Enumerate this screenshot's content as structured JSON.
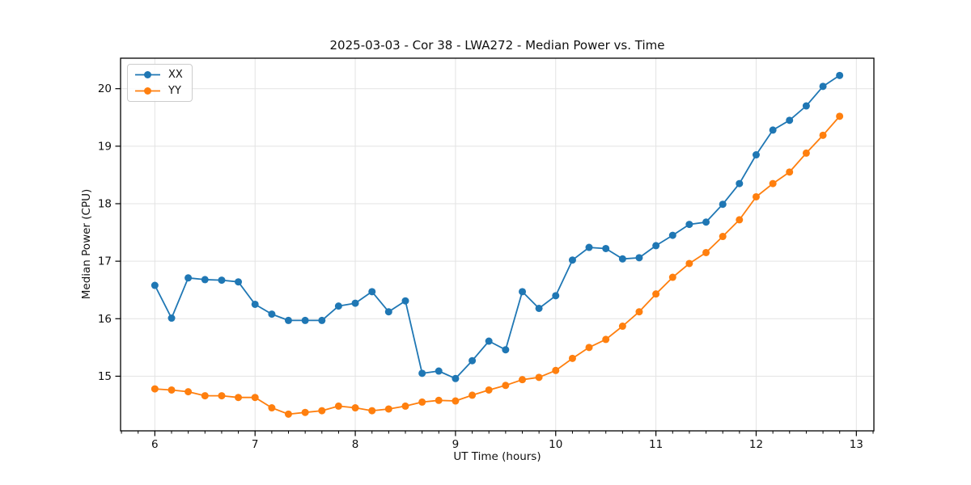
{
  "chart_data": {
    "type": "line",
    "title": "2025-03-03 - Cor 38 - LWA272 - Median Power vs. Time",
    "xlabel": "UT Time (hours)",
    "ylabel": "Median Power (CPU)",
    "xlim": [
      5.658,
      13.175
    ],
    "ylim": [
      14.05,
      20.53
    ],
    "x_ticks": [
      6,
      7,
      8,
      9,
      10,
      11,
      12,
      13
    ],
    "y_ticks": [
      15,
      16,
      17,
      18,
      19,
      20
    ],
    "x_minor_step": 0.16667,
    "grid": true,
    "legend_position": "upper-left",
    "x": [
      6.0,
      6.167,
      6.333,
      6.5,
      6.667,
      6.833,
      7.0,
      7.167,
      7.333,
      7.5,
      7.667,
      7.833,
      8.0,
      8.167,
      8.333,
      8.5,
      8.667,
      8.833,
      9.0,
      9.167,
      9.333,
      9.5,
      9.667,
      9.833,
      10.0,
      10.167,
      10.333,
      10.5,
      10.667,
      10.833,
      11.0,
      11.167,
      11.333,
      11.5,
      11.667,
      11.833,
      12.0,
      12.167,
      12.333,
      12.5,
      12.667,
      12.833
    ],
    "series": [
      {
        "name": "XX",
        "color": "#1f77b4",
        "values": [
          16.58,
          16.01,
          16.71,
          16.68,
          16.67,
          16.64,
          16.25,
          16.08,
          15.97,
          15.97,
          15.97,
          16.22,
          16.27,
          16.47,
          16.12,
          16.31,
          15.05,
          15.09,
          14.96,
          15.27,
          15.61,
          15.46,
          16.47,
          16.18,
          16.4,
          17.02,
          17.24,
          17.22,
          17.04,
          17.06,
          17.27,
          17.45,
          17.64,
          17.68,
          17.99,
          18.35,
          18.85,
          19.28,
          19.45,
          19.7,
          20.04,
          20.23
        ]
      },
      {
        "name": "YY",
        "color": "#ff7f0e",
        "values": [
          14.78,
          14.76,
          14.73,
          14.66,
          14.66,
          14.63,
          14.63,
          14.45,
          14.34,
          14.37,
          14.4,
          14.48,
          14.45,
          14.4,
          14.43,
          14.48,
          14.55,
          14.58,
          14.57,
          14.67,
          14.76,
          14.84,
          14.94,
          14.98,
          15.1,
          15.31,
          15.5,
          15.64,
          15.87,
          16.12,
          16.43,
          16.72,
          16.96,
          17.15,
          17.43,
          17.72,
          18.12,
          18.35,
          18.55,
          18.88,
          19.19,
          19.52
        ]
      }
    ],
    "style": {
      "grid_color": "#e3e3e3",
      "spine_color": "#000000",
      "text_color": "#111111"
    }
  }
}
